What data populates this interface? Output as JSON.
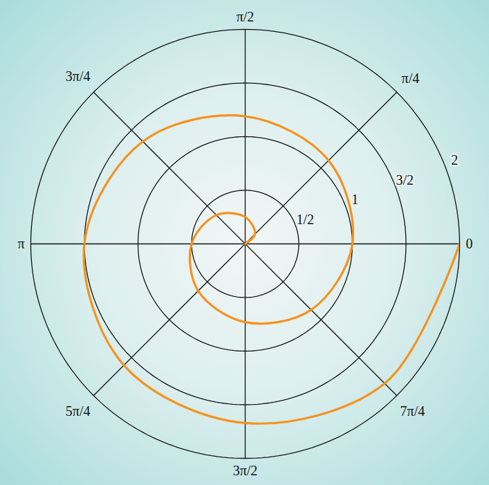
{
  "chart_data": {
    "type": "polar line",
    "color": "#f5921e",
    "grid": true,
    "theta": [
      0,
      0.7854,
      1.5708,
      2.3562,
      3.1416,
      3.927,
      4.7124,
      5.4978,
      6.2832,
      7.0686,
      7.854,
      8.6394,
      9.4248,
      10.2102,
      10.9956,
      11.781,
      12.5664
    ],
    "values": [
      0,
      0.13,
      0.25,
      0.38,
      0.5,
      0.62,
      0.73,
      0.87,
      1.0,
      1.1,
      1.19,
      1.35,
      1.5,
      1.6,
      1.67,
      1.84,
      2.0
    ],
    "rlim": [
      0,
      2
    ],
    "rticks": [
      {
        "value": 0.5,
        "label": "1/2"
      },
      1,
      {
        "value": 1.5,
        "label": "3/2"
      },
      2
    ],
    "thetaticks": [
      0,
      {
        "value": 0.7854,
        "label": "π/4"
      },
      {
        "value": 1.5708,
        "label": "π/2"
      },
      {
        "value": 2.3562,
        "label": "3π/4"
      },
      {
        "value": 3.1416,
        "label": "π"
      },
      {
        "value": 3.927,
        "label": "5π/4"
      },
      {
        "value": 4.7124,
        "label": "3π/2"
      },
      {
        "value": 5.4978,
        "label": "7π/4"
      }
    ]
  }
}
